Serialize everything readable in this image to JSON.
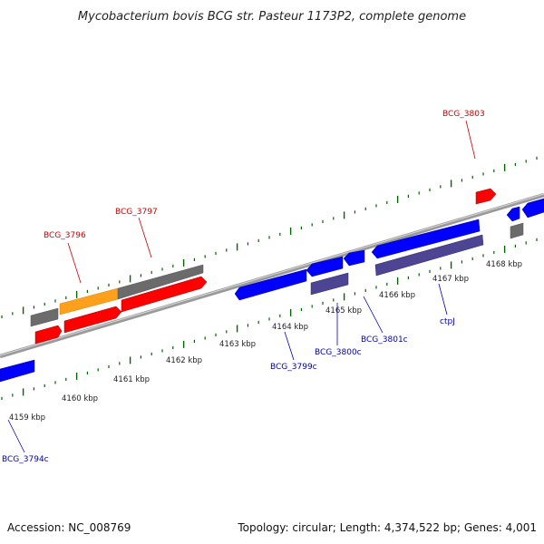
{
  "title": "Mycobacterium bovis BCG str. Pasteur 1173P2, complete genome",
  "accession": "Accession: NC_008769",
  "topology": "Topology: circular; Length: 4,374,522 bp; Genes: 4,001",
  "colors": {
    "forward_cds": "#ff0000",
    "reverse_cds": "#0000ff",
    "forward_gene": "#6b6b6b",
    "reverse_gene": "#4d4594",
    "highlight": "#ffa01c",
    "backbone": "#888888",
    "ticks": "#006400",
    "forward_label": "#cc0000",
    "reverse_label": "#0000aa"
  },
  "scale": {
    "labels": [
      "4159 kbp",
      "4160 kbp",
      "4161 kbp",
      "4162 kbp",
      "4163 kbp",
      "4164 kbp",
      "4165 kbp",
      "4166 kbp",
      "4167 kbp",
      "4168 kbp"
    ]
  },
  "genes": {
    "forward": [
      {
        "label": "BCG_3796",
        "strand": "forward"
      },
      {
        "label": "BCG_3797",
        "strand": "forward"
      },
      {
        "label": "BCG_3803",
        "strand": "forward"
      }
    ],
    "reverse": [
      {
        "label": "BCG_3794c",
        "strand": "reverse"
      },
      {
        "label": "BCG_3799c",
        "strand": "reverse"
      },
      {
        "label": "BCG_3800c",
        "strand": "reverse"
      },
      {
        "label": "BCG_3801c",
        "strand": "reverse"
      },
      {
        "label": "ctpJ",
        "strand": "reverse"
      }
    ]
  }
}
